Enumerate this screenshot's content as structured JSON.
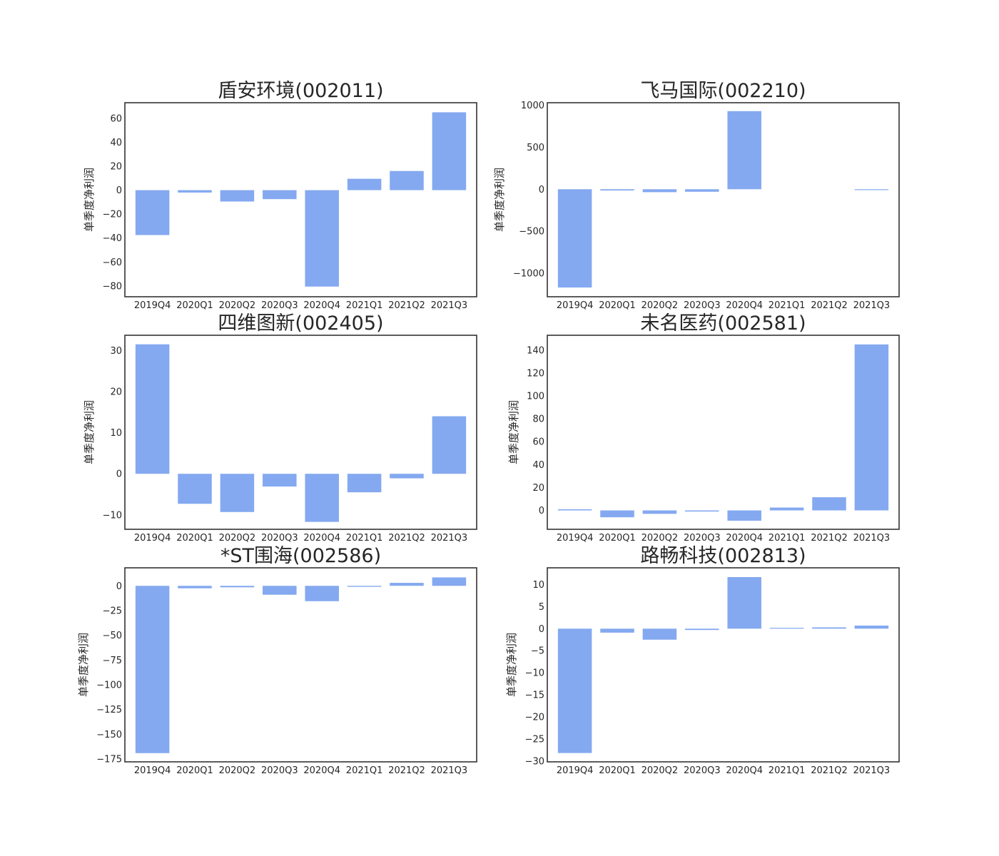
{
  "colors": {
    "bar": "#84a9f0",
    "axes": "#333333",
    "text": "#262626"
  },
  "chart_data": [
    {
      "type": "bar",
      "title": "盾安环境(002011)",
      "xlabel": "",
      "ylabel": "单季度净利润",
      "categories": [
        "2019Q4",
        "2020Q1",
        "2020Q2",
        "2020Q3",
        "2020Q4",
        "2021Q1",
        "2021Q2",
        "2021Q3"
      ],
      "values": [
        -37.5,
        -2,
        -9.5,
        -7.5,
        -80.5,
        9.5,
        16,
        65
      ],
      "ylim": [
        -89,
        73
      ],
      "yticks": [
        -80,
        -60,
        -40,
        -20,
        0,
        20,
        40,
        60
      ],
      "ytick_labels": [
        "−80",
        "−60",
        "−40",
        "−20",
        "0",
        "20",
        "40",
        "60"
      ]
    },
    {
      "type": "bar",
      "title": "飞马国际(002210)",
      "xlabel": "",
      "ylabel": "单季度净利润",
      "categories": [
        "2019Q4",
        "2020Q1",
        "2020Q2",
        "2020Q3",
        "2020Q4",
        "2021Q1",
        "2021Q2",
        "2021Q3"
      ],
      "values": [
        -1170,
        -15,
        -35,
        -30,
        930,
        0,
        0,
        -5
      ],
      "ylim": [
        -1280,
        1030
      ],
      "yticks": [
        -1000,
        -500,
        0,
        500,
        1000
      ],
      "ytick_labels": [
        "−1000",
        "−500",
        "0",
        "500",
        "1000"
      ]
    },
    {
      "type": "bar",
      "title": "四维图新(002405)",
      "xlabel": "",
      "ylabel": "单季度净利润",
      "categories": [
        "2019Q4",
        "2020Q1",
        "2020Q2",
        "2020Q3",
        "2020Q4",
        "2021Q1",
        "2021Q2",
        "2021Q3"
      ],
      "values": [
        31.5,
        -7.3,
        -9.3,
        -3.1,
        -11.7,
        -4.5,
        -1.1,
        14
      ],
      "ylim": [
        -13.5,
        33.7
      ],
      "yticks": [
        -10,
        0,
        10,
        20,
        30
      ],
      "ytick_labels": [
        "−10",
        "0",
        "10",
        "20",
        "30"
      ]
    },
    {
      "type": "bar",
      "title": "未名医药(002581)",
      "xlabel": "",
      "ylabel": "单季度净利润",
      "categories": [
        "2019Q4",
        "2020Q1",
        "2020Q2",
        "2020Q3",
        "2020Q4",
        "2021Q1",
        "2021Q2",
        "2021Q3"
      ],
      "values": [
        1,
        -6,
        -3,
        -1,
        -9,
        2.5,
        11.5,
        145
      ],
      "ylim": [
        -16.5,
        153
      ],
      "yticks": [
        0,
        20,
        40,
        60,
        80,
        100,
        120,
        140
      ],
      "ytick_labels": [
        "0",
        "20",
        "40",
        "60",
        "80",
        "100",
        "120",
        "140"
      ]
    },
    {
      "type": "bar",
      "title": "*ST围海(002586)",
      "xlabel": "",
      "ylabel": "单季度净利润",
      "categories": [
        "2019Q4",
        "2020Q1",
        "2020Q2",
        "2020Q3",
        "2020Q4",
        "2021Q1",
        "2021Q2",
        "2021Q3"
      ],
      "values": [
        -169,
        -2.5,
        -1.5,
        -9,
        -15.5,
        -1,
        3,
        8.5
      ],
      "ylim": [
        -177.8,
        18.2
      ],
      "yticks": [
        -175,
        -150,
        -125,
        -100,
        -75,
        -50,
        -25,
        0
      ],
      "ytick_labels": [
        "−175",
        "−150",
        "−125",
        "−100",
        "−75",
        "−50",
        "−25",
        "0"
      ]
    },
    {
      "type": "bar",
      "title": "路畅科技(002813)",
      "xlabel": "",
      "ylabel": "单季度净利润",
      "categories": [
        "2019Q4",
        "2020Q1",
        "2020Q2",
        "2020Q3",
        "2020Q4",
        "2021Q1",
        "2021Q2",
        "2021Q3"
      ],
      "values": [
        -28.2,
        -0.9,
        -2.5,
        -0.3,
        11.7,
        0.1,
        0.3,
        0.7
      ],
      "ylim": [
        -30.2,
        13.8
      ],
      "yticks": [
        -30,
        -25,
        -20,
        -15,
        -10,
        -5,
        0,
        5,
        10
      ],
      "ytick_labels": [
        "−30",
        "−25",
        "−20",
        "−15",
        "−10",
        "−5",
        "0",
        "5",
        "10"
      ]
    }
  ]
}
